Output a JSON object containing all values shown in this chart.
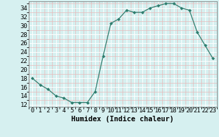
{
  "x": [
    0,
    1,
    2,
    3,
    4,
    5,
    6,
    7,
    8,
    9,
    10,
    11,
    12,
    13,
    14,
    15,
    16,
    17,
    18,
    19,
    20,
    21,
    22,
    23
  ],
  "y": [
    18,
    16.5,
    15.5,
    14,
    13.5,
    12.5,
    12.5,
    12.5,
    15,
    23,
    30.5,
    31.5,
    33.5,
    33,
    33,
    34,
    34.5,
    35,
    35,
    34,
    33.5,
    28.5,
    25.5,
    22.5
  ],
  "line_color": "#2e7d6e",
  "marker": "D",
  "marker_size": 2.0,
  "bg_color": "#d6f0f0",
  "grid_color_major": "#ffffff",
  "grid_color_minor": "#e8b8b8",
  "xlabel": "Humidex (Indice chaleur)",
  "xlabel_fontsize": 7.5,
  "ylabel_ticks": [
    12,
    14,
    16,
    18,
    20,
    22,
    24,
    26,
    28,
    30,
    32,
    34
  ],
  "ylim": [
    11.5,
    35.5
  ],
  "xlim": [
    -0.5,
    23.5
  ],
  "tick_fontsize": 6.5,
  "linewidth": 0.9
}
